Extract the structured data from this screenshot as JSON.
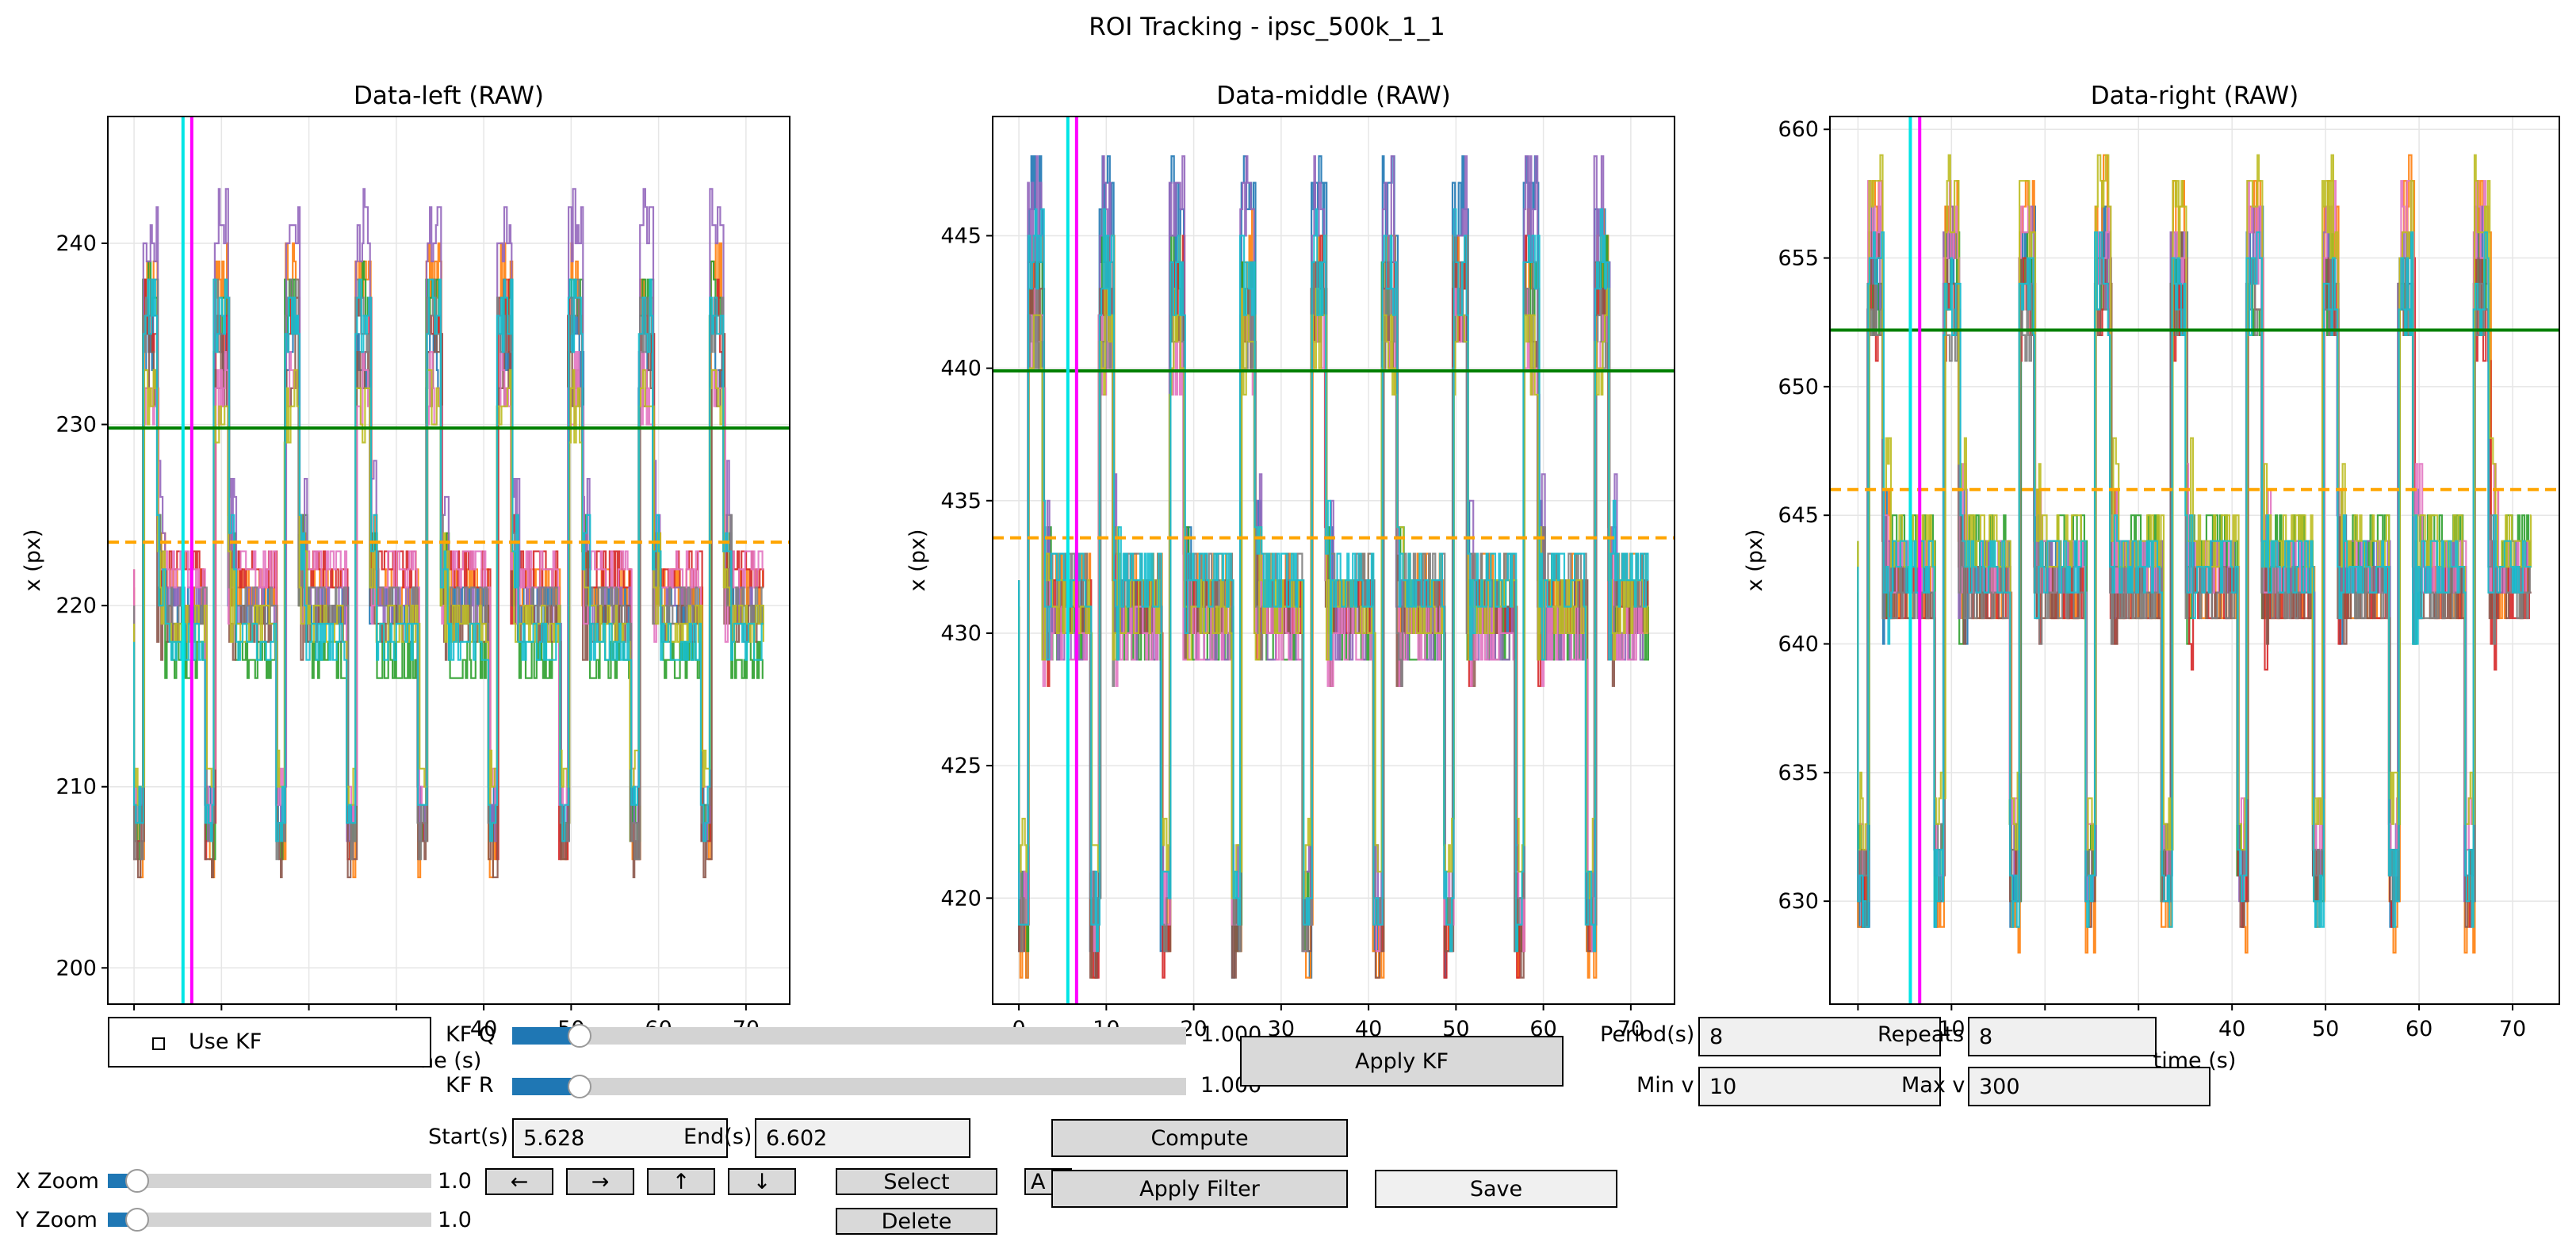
{
  "window": {
    "title": "ROI Tracking - ipsc_500k_1_1"
  },
  "colors": {
    "background": "#ffffff",
    "reference_line": "#008000",
    "threshold_line": "#ffa500",
    "cursor_cyan": "#00e5e5",
    "cursor_magenta": "#ff00ff",
    "slider_fill": "#1f77b4",
    "slider_track": "#d3d3d3",
    "button_bg": "#d9d9d9",
    "textbox_bg": "#f0f0f0"
  },
  "chart_data": [
    {
      "type": "line",
      "title": "Data-left (RAW)",
      "ylabel": "x (px)",
      "xlabel": "",
      "xlim": [
        -3,
        75
      ],
      "ylim": [
        198,
        247
      ],
      "xticks": [
        0,
        10,
        20,
        30,
        40,
        50,
        60,
        70
      ],
      "yticks": [
        200,
        210,
        220,
        230,
        240
      ],
      "grid": true,
      "hlines": [
        {
          "y": 229.8,
          "color": "#008000",
          "style": "solid"
        },
        {
          "y": 223.5,
          "color": "#ffa500",
          "style": "dashed"
        }
      ],
      "vlines": [
        {
          "x": 5.6,
          "color": "#00e5e5"
        },
        {
          "x": 6.6,
          "color": "#ff00ff"
        }
      ],
      "period_s": 8.1,
      "t_start": 0,
      "t_end": 72,
      "series": [
        {
          "color": "#1f77b4",
          "high": 236,
          "low": 207,
          "rest": 220
        },
        {
          "color": "#ff7f0e",
          "high": 240,
          "low": 205,
          "rest": 221
        },
        {
          "color": "#2ca02c",
          "high": 239,
          "low": 206,
          "rest": 217
        },
        {
          "color": "#d62728",
          "high": 238,
          "low": 206,
          "rest": 222
        },
        {
          "color": "#9467bd",
          "high": 243,
          "low": 207,
          "rest": 220
        },
        {
          "color": "#8c564b",
          "high": 235,
          "low": 205,
          "rest": 219
        },
        {
          "color": "#e377c2",
          "high": 234,
          "low": 208,
          "rest": 222
        },
        {
          "color": "#7f7f7f",
          "high": 238,
          "low": 206,
          "rest": 220
        },
        {
          "color": "#bcbd22",
          "high": 233,
          "low": 209,
          "rest": 219
        },
        {
          "color": "#17becf",
          "high": 238,
          "low": 207,
          "rest": 218
        }
      ]
    },
    {
      "type": "line",
      "title": "Data-middle (RAW)",
      "ylabel": "x (px)",
      "xlabel": "",
      "xlim": [
        -3,
        75
      ],
      "ylim": [
        416,
        449.5
      ],
      "xticks": [
        0,
        10,
        20,
        30,
        40,
        50,
        60,
        70
      ],
      "yticks": [
        420,
        425,
        430,
        435,
        440,
        445
      ],
      "grid": true,
      "hlines": [
        {
          "y": 439.9,
          "color": "#008000",
          "style": "solid"
        },
        {
          "y": 433.6,
          "color": "#ffa500",
          "style": "dashed"
        }
      ],
      "vlines": [
        {
          "x": 5.6,
          "color": "#00e5e5"
        },
        {
          "x": 6.6,
          "color": "#ff00ff"
        }
      ],
      "period_s": 8.1,
      "t_start": 0,
      "t_end": 72,
      "series": [
        {
          "color": "#1f77b4",
          "high": 448,
          "low": 417,
          "rest": 431
        },
        {
          "color": "#ff7f0e",
          "high": 446,
          "low": 417,
          "rest": 432
        },
        {
          "color": "#2ca02c",
          "high": 445,
          "low": 418,
          "rest": 430
        },
        {
          "color": "#d62728",
          "high": 445,
          "low": 417,
          "rest": 431
        },
        {
          "color": "#9467bd",
          "high": 448,
          "low": 419,
          "rest": 430
        },
        {
          "color": "#8c564b",
          "high": 444,
          "low": 417,
          "rest": 431
        },
        {
          "color": "#e377c2",
          "high": 443,
          "low": 418,
          "rest": 430
        },
        {
          "color": "#7f7f7f",
          "high": 444,
          "low": 418,
          "rest": 432
        },
        {
          "color": "#bcbd22",
          "high": 443,
          "low": 420,
          "rest": 431
        },
        {
          "color": "#17becf",
          "high": 446,
          "low": 418,
          "rest": 432
        }
      ]
    },
    {
      "type": "line",
      "title": "Data-right (RAW)",
      "ylabel": "x (px)",
      "xlabel": "time (s)",
      "xlim": [
        -3,
        75
      ],
      "ylim": [
        626,
        660.5
      ],
      "xticks": [
        0,
        10,
        20,
        30,
        40,
        50,
        60,
        70
      ],
      "yticks": [
        630,
        635,
        640,
        645,
        650,
        655,
        660
      ],
      "grid": true,
      "hlines": [
        {
          "y": 652.2,
          "color": "#008000",
          "style": "solid"
        },
        {
          "y": 646.0,
          "color": "#ffa500",
          "style": "dashed"
        }
      ],
      "vlines": [
        {
          "x": 5.6,
          "color": "#00e5e5"
        },
        {
          "x": 6.6,
          "color": "#ff00ff"
        }
      ],
      "period_s": 8.1,
      "t_start": 0,
      "t_end": 72,
      "series": [
        {
          "color": "#1f77b4",
          "high": 657,
          "low": 629,
          "rest": 643
        },
        {
          "color": "#ff7f0e",
          "high": 659,
          "low": 628,
          "rest": 642
        },
        {
          "color": "#2ca02c",
          "high": 656,
          "low": 630,
          "rest": 644
        },
        {
          "color": "#d62728",
          "high": 655,
          "low": 629,
          "rest": 642
        },
        {
          "color": "#9467bd",
          "high": 657,
          "low": 630,
          "rest": 643
        },
        {
          "color": "#8c564b",
          "high": 656,
          "low": 629,
          "rest": 642
        },
        {
          "color": "#e377c2",
          "high": 658,
          "low": 631,
          "rest": 643
        },
        {
          "color": "#7f7f7f",
          "high": 655,
          "low": 630,
          "rest": 642
        },
        {
          "color": "#bcbd22",
          "high": 659,
          "low": 632,
          "rest": 644
        },
        {
          "color": "#17becf",
          "high": 656,
          "low": 629,
          "rest": 643
        }
      ]
    }
  ],
  "controls": {
    "use_kf_label": "Use KF",
    "use_kf_checked": false,
    "kf_q_label": "KF Q",
    "kf_q_value": "1.000",
    "kf_q_fraction": 0.1,
    "kf_r_label": "KF R",
    "kf_r_value": "1.000",
    "kf_r_fraction": 0.1,
    "apply_kf_label": "Apply KF",
    "period_label": "Period(s)",
    "period_value": "8",
    "repeats_label": "Repeats",
    "repeats_value": "8",
    "min_v_label": "Min v",
    "min_v_value": "10",
    "max_v_label": "Max v",
    "max_v_value": "300",
    "start_label": "Start(s)",
    "start_value": "5.628",
    "end_label": "End(s)",
    "end_value": "6.602",
    "compute_label": "Compute",
    "apply_filter_label": "Apply Filter",
    "save_label": "Save",
    "x_zoom_label": "X Zoom",
    "x_zoom_value": "1.0",
    "x_zoom_fraction": 0.09,
    "y_zoom_label": "Y Zoom",
    "y_zoom_value": "1.0",
    "y_zoom_fraction": 0.09,
    "left_label": "←",
    "right_label": "→",
    "up_label": "↑",
    "down_label": "↓",
    "select_label": "Select",
    "delete_label": "Delete",
    "hidden_button_label": "A",
    "hidden_axis_fragment": "ne (s)"
  }
}
